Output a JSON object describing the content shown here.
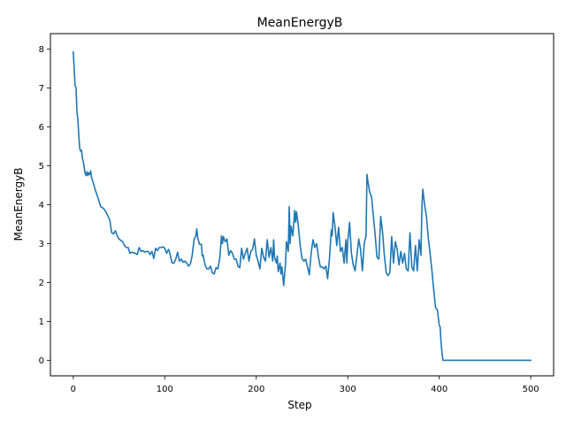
{
  "chart_data": {
    "type": "line",
    "title": "MeanEnergyB",
    "xlabel": "Step",
    "ylabel": "MeanEnergyB",
    "xlim": [
      -25,
      525
    ],
    "ylim": [
      -0.4,
      8.4
    ],
    "xticks": [
      0,
      100,
      200,
      300,
      400,
      500
    ],
    "yticks": [
      0,
      1,
      2,
      3,
      4,
      5,
      6,
      7,
      8
    ],
    "grid": false,
    "color": "#1f77b4",
    "series": [
      {
        "points": [
          [
            0,
            7.93
          ],
          [
            2,
            7.05
          ],
          [
            3,
            7.02
          ],
          [
            4,
            6.4
          ],
          [
            5,
            6.2
          ],
          [
            6,
            5.8
          ],
          [
            7,
            5.45
          ],
          [
            8,
            5.38
          ],
          [
            9,
            5.4
          ],
          [
            10,
            5.2
          ],
          [
            11,
            5.1
          ],
          [
            12,
            4.95
          ],
          [
            13,
            4.8
          ],
          [
            14,
            4.75
          ],
          [
            15,
            4.85
          ],
          [
            16,
            4.75
          ],
          [
            17,
            4.82
          ],
          [
            18,
            4.78
          ],
          [
            19,
            4.87
          ],
          [
            20,
            4.7
          ],
          [
            22,
            4.55
          ],
          [
            24,
            4.38
          ],
          [
            26,
            4.25
          ],
          [
            28,
            4.1
          ],
          [
            30,
            3.95
          ],
          [
            32,
            3.92
          ],
          [
            34,
            3.88
          ],
          [
            36,
            3.8
          ],
          [
            38,
            3.7
          ],
          [
            40,
            3.6
          ],
          [
            41,
            3.42
          ],
          [
            42,
            3.28
          ],
          [
            44,
            3.25
          ],
          [
            46,
            3.33
          ],
          [
            48,
            3.2
          ],
          [
            50,
            3.12
          ],
          [
            52,
            3.08
          ],
          [
            54,
            3.05
          ],
          [
            56,
            2.95
          ],
          [
            58,
            2.9
          ],
          [
            60,
            2.9
          ],
          [
            62,
            2.75
          ],
          [
            64,
            2.78
          ],
          [
            66,
            2.76
          ],
          [
            68,
            2.75
          ],
          [
            70,
            2.72
          ],
          [
            72,
            2.9
          ],
          [
            74,
            2.8
          ],
          [
            76,
            2.82
          ],
          [
            78,
            2.78
          ],
          [
            80,
            2.8
          ],
          [
            82,
            2.8
          ],
          [
            84,
            2.72
          ],
          [
            86,
            2.8
          ],
          [
            88,
            2.62
          ],
          [
            90,
            2.88
          ],
          [
            92,
            2.82
          ],
          [
            94,
            2.9
          ],
          [
            96,
            2.9
          ],
          [
            98,
            2.92
          ],
          [
            100,
            2.88
          ],
          [
            102,
            2.75
          ],
          [
            104,
            2.85
          ],
          [
            105,
            2.8
          ],
          [
            106,
            2.7
          ],
          [
            108,
            2.5
          ],
          [
            110,
            2.5
          ],
          [
            112,
            2.6
          ],
          [
            114,
            2.78
          ],
          [
            116,
            2.55
          ],
          [
            118,
            2.6
          ],
          [
            120,
            2.52
          ],
          [
            122,
            2.55
          ],
          [
            124,
            2.5
          ],
          [
            126,
            2.42
          ],
          [
            128,
            2.48
          ],
          [
            130,
            2.7
          ],
          [
            132,
            3.1
          ],
          [
            134,
            3.2
          ],
          [
            135,
            3.38
          ],
          [
            136,
            3.15
          ],
          [
            138,
            2.98
          ],
          [
            140,
            2.98
          ],
          [
            141,
            2.68
          ],
          [
            142,
            2.7
          ],
          [
            144,
            2.45
          ],
          [
            146,
            2.35
          ],
          [
            148,
            2.35
          ],
          [
            150,
            2.42
          ],
          [
            152,
            2.25
          ],
          [
            154,
            2.22
          ],
          [
            156,
            2.38
          ],
          [
            158,
            2.35
          ],
          [
            160,
            2.6
          ],
          [
            162,
            3.2
          ],
          [
            163,
            3.0
          ],
          [
            164,
            3.18
          ],
          [
            166,
            3.05
          ],
          [
            168,
            3.12
          ],
          [
            170,
            2.7
          ],
          [
            172,
            2.82
          ],
          [
            174,
            2.75
          ],
          [
            176,
            2.6
          ],
          [
            178,
            2.6
          ],
          [
            180,
            2.42
          ],
          [
            182,
            2.38
          ],
          [
            184,
            2.88
          ],
          [
            186,
            2.6
          ],
          [
            188,
            2.75
          ],
          [
            190,
            2.88
          ],
          [
            192,
            2.55
          ],
          [
            194,
            2.8
          ],
          [
            196,
            2.85
          ],
          [
            198,
            3.12
          ],
          [
            200,
            2.7
          ],
          [
            202,
            2.55
          ],
          [
            204,
            2.35
          ],
          [
            206,
            2.88
          ],
          [
            208,
            2.65
          ],
          [
            210,
            2.55
          ],
          [
            212,
            3.1
          ],
          [
            214,
            2.65
          ],
          [
            216,
            2.9
          ],
          [
            218,
            2.55
          ],
          [
            219,
            3.1
          ],
          [
            220,
            2.65
          ],
          [
            222,
            2.5
          ],
          [
            223,
            2.68
          ],
          [
            224,
            2.28
          ],
          [
            226,
            2.5
          ],
          [
            227,
            2.22
          ],
          [
            228,
            2.4
          ],
          [
            230,
            1.92
          ],
          [
            232,
            2.5
          ],
          [
            233,
            3.05
          ],
          [
            235,
            2.8
          ],
          [
            236,
            3.95
          ],
          [
            237,
            3.0
          ],
          [
            238,
            3.45
          ],
          [
            240,
            3.2
          ],
          [
            242,
            3.85
          ],
          [
            243,
            3.55
          ],
          [
            244,
            3.82
          ],
          [
            246,
            3.45
          ],
          [
            248,
            2.95
          ],
          [
            250,
            2.62
          ],
          [
            252,
            2.55
          ],
          [
            254,
            2.6
          ],
          [
            256,
            2.4
          ],
          [
            258,
            2.2
          ],
          [
            260,
            2.75
          ],
          [
            262,
            3.1
          ],
          [
            264,
            2.9
          ],
          [
            266,
            3.0
          ],
          [
            268,
            2.65
          ],
          [
            270,
            2.4
          ],
          [
            272,
            2.4
          ],
          [
            274,
            2.35
          ],
          [
            276,
            2.42
          ],
          [
            278,
            2.1
          ],
          [
            280,
            2.62
          ],
          [
            282,
            3.35
          ],
          [
            283,
            3.2
          ],
          [
            284,
            3.8
          ],
          [
            286,
            3.45
          ],
          [
            288,
            2.95
          ],
          [
            290,
            3.42
          ],
          [
            292,
            2.8
          ],
          [
            294,
            2.9
          ],
          [
            296,
            2.5
          ],
          [
            298,
            3.1
          ],
          [
            299,
            2.5
          ],
          [
            300,
            3.05
          ],
          [
            302,
            3.55
          ],
          [
            304,
            2.75
          ],
          [
            306,
            2.45
          ],
          [
            308,
            2.3
          ],
          [
            310,
            2.7
          ],
          [
            312,
            3.12
          ],
          [
            314,
            2.85
          ],
          [
            316,
            2.3
          ],
          [
            318,
            3.0
          ],
          [
            320,
            3.2
          ],
          [
            321,
            4.78
          ],
          [
            322,
            4.6
          ],
          [
            324,
            4.32
          ],
          [
            326,
            4.2
          ],
          [
            328,
            3.7
          ],
          [
            330,
            3.2
          ],
          [
            332,
            2.65
          ],
          [
            334,
            2.6
          ],
          [
            336,
            3.7
          ],
          [
            338,
            3.3
          ],
          [
            340,
            2.7
          ],
          [
            342,
            2.25
          ],
          [
            344,
            2.18
          ],
          [
            346,
            2.25
          ],
          [
            348,
            3.18
          ],
          [
            350,
            2.5
          ],
          [
            352,
            3.05
          ],
          [
            354,
            2.85
          ],
          [
            356,
            2.45
          ],
          [
            358,
            2.8
          ],
          [
            360,
            2.5
          ],
          [
            362,
            2.75
          ],
          [
            364,
            2.35
          ],
          [
            366,
            2.3
          ],
          [
            368,
            3.28
          ],
          [
            370,
            2.4
          ],
          [
            372,
            2.3
          ],
          [
            374,
            2.95
          ],
          [
            376,
            2.3
          ],
          [
            378,
            3.1
          ],
          [
            380,
            2.7
          ],
          [
            381,
            3.9
          ],
          [
            382,
            4.4
          ],
          [
            384,
            4.0
          ],
          [
            386,
            3.7
          ],
          [
            388,
            3.15
          ],
          [
            390,
            2.75
          ],
          [
            392,
            2.3
          ],
          [
            394,
            1.8
          ],
          [
            396,
            1.35
          ],
          [
            398,
            1.3
          ],
          [
            400,
            0.9
          ],
          [
            401,
            0.85
          ],
          [
            402,
            0.45
          ],
          [
            403,
            0.2
          ],
          [
            404,
            0.0
          ],
          [
            500,
            0.0
          ]
        ]
      }
    ]
  }
}
